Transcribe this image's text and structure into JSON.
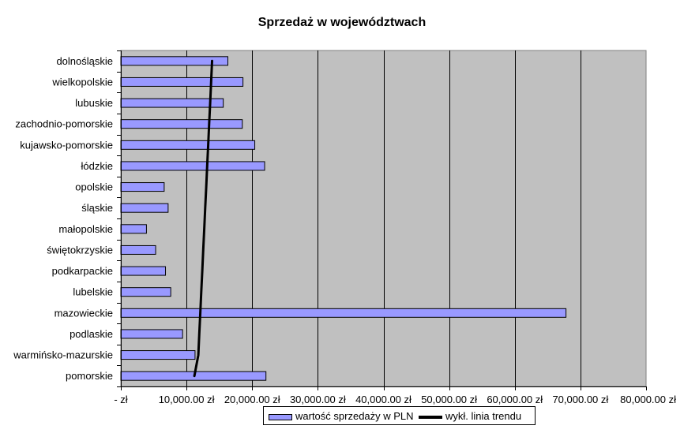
{
  "chart_data": {
    "type": "bar",
    "orientation": "horizontal",
    "title": "Sprzedaż w województwach",
    "categories": [
      "dolnośląskie",
      "wielkopolskie",
      "lubuskie",
      "zachodnio-pomorskie",
      "kujawsko-pomorskie",
      "łódzkie",
      "opolskie",
      "śląskie",
      "małopolskie",
      "świętokrzyskie",
      "podkarpackie",
      "lubelskie",
      "mazowieckie",
      "podlaskie",
      "warmińsko-mazurskie",
      "pomorskie"
    ],
    "series": [
      {
        "name": "wartość sprzedaży w PLN",
        "type": "bar",
        "color": "#9999ff",
        "values": [
          16300,
          18600,
          15600,
          18500,
          20400,
          21900,
          6600,
          7200,
          3900,
          5300,
          6800,
          7600,
          67800,
          9400,
          11300,
          22100
        ]
      },
      {
        "name": "wykł. linia trendu",
        "type": "line",
        "color": "#000000",
        "values": [
          13900,
          13750,
          13600,
          13450,
          13300,
          13150,
          13000,
          12850,
          12700,
          12550,
          12400,
          12250,
          12100,
          11950,
          11800,
          11200
        ]
      }
    ],
    "xlim": [
      0,
      80000
    ],
    "x_ticks": [
      0,
      10000,
      20000,
      30000,
      40000,
      50000,
      60000,
      70000,
      80000
    ],
    "x_tick_labels": [
      "-    zł",
      "10,000.00 zł",
      "20,000.00 zł",
      "30,000.00 zł",
      "40,000.00 zł",
      "50,000.00 zł",
      "60,000.00 zł",
      "70,000.00 zł",
      "80,000.00 zł"
    ],
    "grid": "vertical",
    "plot_background": "#c0c0c0",
    "legend_position": "bottom"
  }
}
